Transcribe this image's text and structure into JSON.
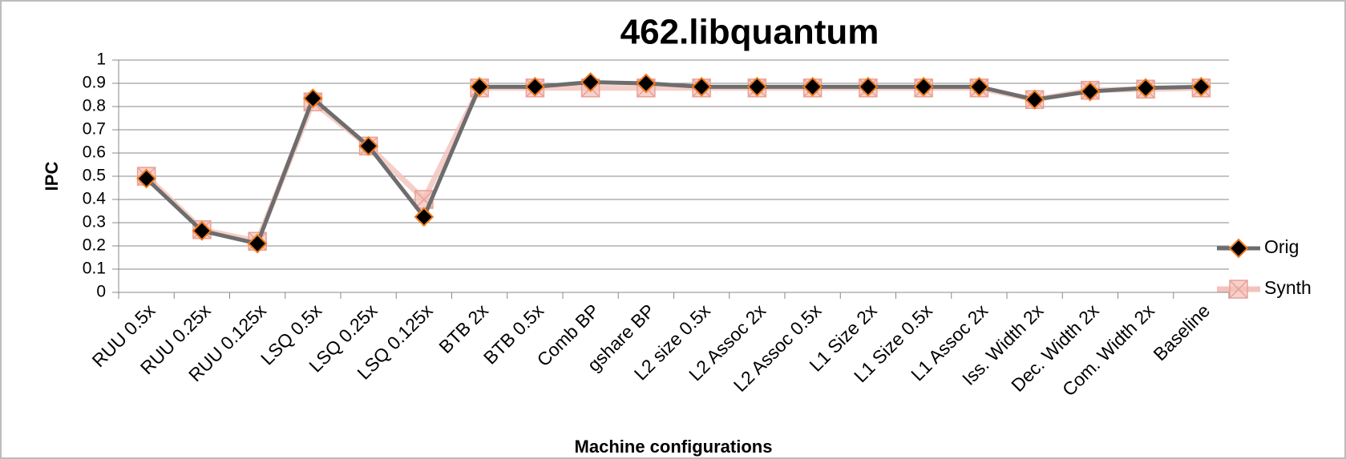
{
  "chart_data": {
    "type": "line",
    "title": "462.libquantum",
    "x_label": "Machine configurations",
    "y_label": "IPC",
    "categories": [
      "RUU 0.5x",
      "RUU 0.25x",
      "RUU 0.125x",
      "LSQ 0.5x",
      "LSQ 0.25x",
      "LSQ 0.125x",
      "BTB 2x",
      "BTB 0.5x",
      "Comb BP",
      "gshare BP",
      "L2 size 0.5x",
      "L2 Assoc 2x",
      "L2 Assoc 0.5x",
      "L1 Size 2x",
      "L1 Size 0.5x",
      "L1 Assoc 2x",
      "Iss. Width 2x",
      "Dec. Width 2x",
      "Com. Width 2x",
      "Baseline"
    ],
    "series": [
      {
        "name": "Orig",
        "color": "#6d6d6d",
        "values": [
          0.49,
          0.265,
          0.21,
          0.835,
          0.63,
          0.325,
          0.885,
          0.885,
          0.905,
          0.9,
          0.885,
          0.885,
          0.885,
          0.885,
          0.885,
          0.885,
          0.83,
          0.865,
          0.88,
          0.885
        ]
      },
      {
        "name": "Synth",
        "color": "#f4c2bc",
        "values": [
          0.5,
          0.27,
          0.22,
          0.82,
          0.63,
          0.4,
          0.88,
          0.88,
          0.88,
          0.88,
          0.88,
          0.88,
          0.88,
          0.88,
          0.88,
          0.88,
          0.83,
          0.87,
          0.875,
          0.88
        ]
      }
    ],
    "ylim": [
      0,
      1
    ],
    "yticks": [
      0,
      0.1,
      0.2,
      0.3,
      0.4,
      0.5,
      0.6,
      0.7,
      0.8,
      0.9,
      1
    ],
    "grid": true,
    "legend": "right"
  }
}
